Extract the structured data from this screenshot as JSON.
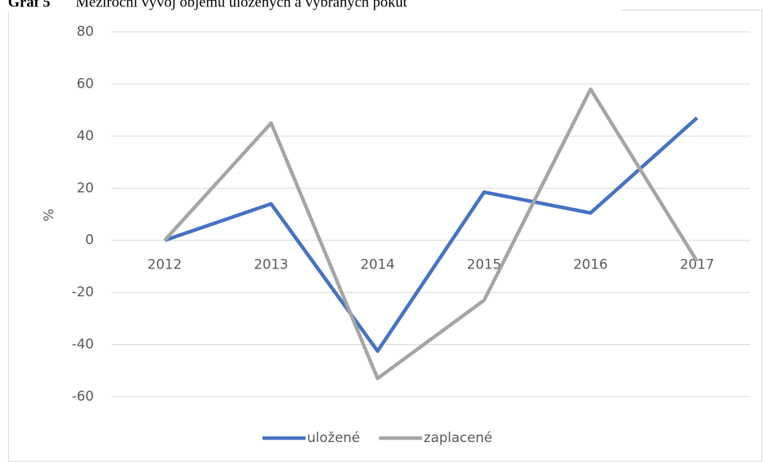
{
  "chart_data": {
    "type": "line",
    "title_label": "Graf 5",
    "title": "Meziroční vývoj objemu uložených a vybraných pokut",
    "y_label": "%",
    "categories": [
      "2012",
      "2013",
      "2014",
      "2015",
      "2016",
      "2017"
    ],
    "series": [
      {
        "name": "uložené",
        "color": "#4472c4",
        "values": [
          0,
          14,
          -42.5,
          18.5,
          10.5,
          47
        ]
      },
      {
        "name": "zaplacené",
        "color": "#a5a5a5",
        "values": [
          0,
          45,
          -53,
          -23,
          58,
          -8
        ]
      }
    ],
    "ylim": [
      -60,
      80
    ],
    "yticks": [
      -60,
      -40,
      -20,
      0,
      20,
      40,
      60,
      80
    ],
    "grid": true,
    "legend": "bottom"
  }
}
